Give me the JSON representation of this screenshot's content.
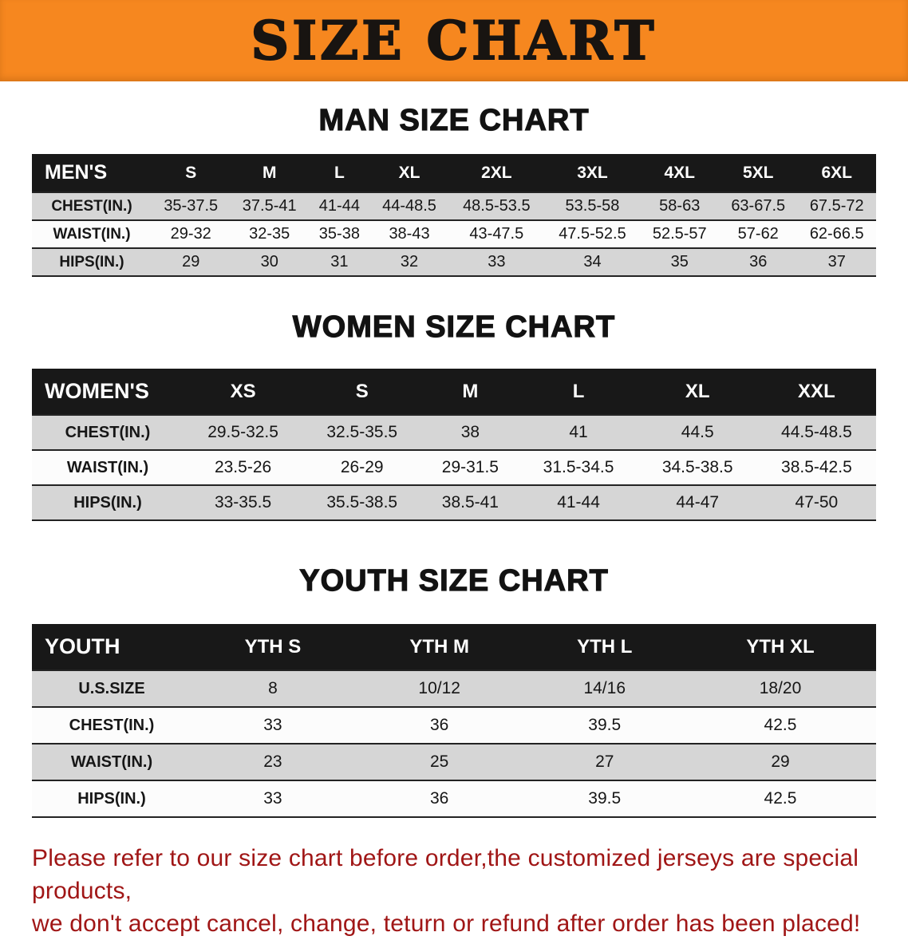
{
  "banner": {
    "title": "SIZE CHART",
    "bg_color": "#f6871f"
  },
  "disclaimer": {
    "line1": "Please refer to our size chart before order,the customized jerseys are special products,",
    "line2": "we don't accept cancel, change, teturn or refund after order has been placed!",
    "color": "#a01616"
  },
  "chart_data": [
    {
      "type": "table",
      "title": "MAN SIZE CHART",
      "header": [
        "MEN'S",
        "S",
        "M",
        "L",
        "XL",
        "2XL",
        "3XL",
        "4XL",
        "5XL",
        "6XL"
      ],
      "rows": [
        [
          "CHEST(IN.)",
          "35-37.5",
          "37.5-41",
          "41-44",
          "44-48.5",
          "48.5-53.5",
          "53.5-58",
          "58-63",
          "63-67.5",
          "67.5-72"
        ],
        [
          "WAIST(IN.)",
          "29-32",
          "32-35",
          "35-38",
          "38-43",
          "43-47.5",
          "47.5-52.5",
          "52.5-57",
          "57-62",
          "62-66.5"
        ],
        [
          "HIPS(IN.)",
          "29",
          "30",
          "31",
          "32",
          "33",
          "34",
          "35",
          "36",
          "37"
        ]
      ]
    },
    {
      "type": "table",
      "title": "WOMEN SIZE CHART",
      "header": [
        "WOMEN'S",
        "XS",
        "S",
        "M",
        "L",
        "XL",
        "XXL"
      ],
      "rows": [
        [
          "CHEST(IN.)",
          "29.5-32.5",
          "32.5-35.5",
          "38",
          "41",
          "44.5",
          "44.5-48.5"
        ],
        [
          "WAIST(IN.)",
          "23.5-26",
          "26-29",
          "29-31.5",
          "31.5-34.5",
          "34.5-38.5",
          "38.5-42.5"
        ],
        [
          "HIPS(IN.)",
          "33-35.5",
          "35.5-38.5",
          "38.5-41",
          "41-44",
          "44-47",
          "47-50"
        ]
      ]
    },
    {
      "type": "table",
      "title": "YOUTH SIZE CHART",
      "header": [
        "YOUTH",
        "YTH S",
        "YTH M",
        "YTH L",
        "YTH XL"
      ],
      "rows": [
        [
          "U.S.SIZE",
          "8",
          "10/12",
          "14/16",
          "18/20"
        ],
        [
          "CHEST(IN.)",
          "33",
          "36",
          "39.5",
          "42.5"
        ],
        [
          "WAIST(IN.)",
          "23",
          "25",
          "27",
          "29"
        ],
        [
          "HIPS(IN.)",
          "33",
          "36",
          "39.5",
          "42.5"
        ]
      ]
    }
  ]
}
